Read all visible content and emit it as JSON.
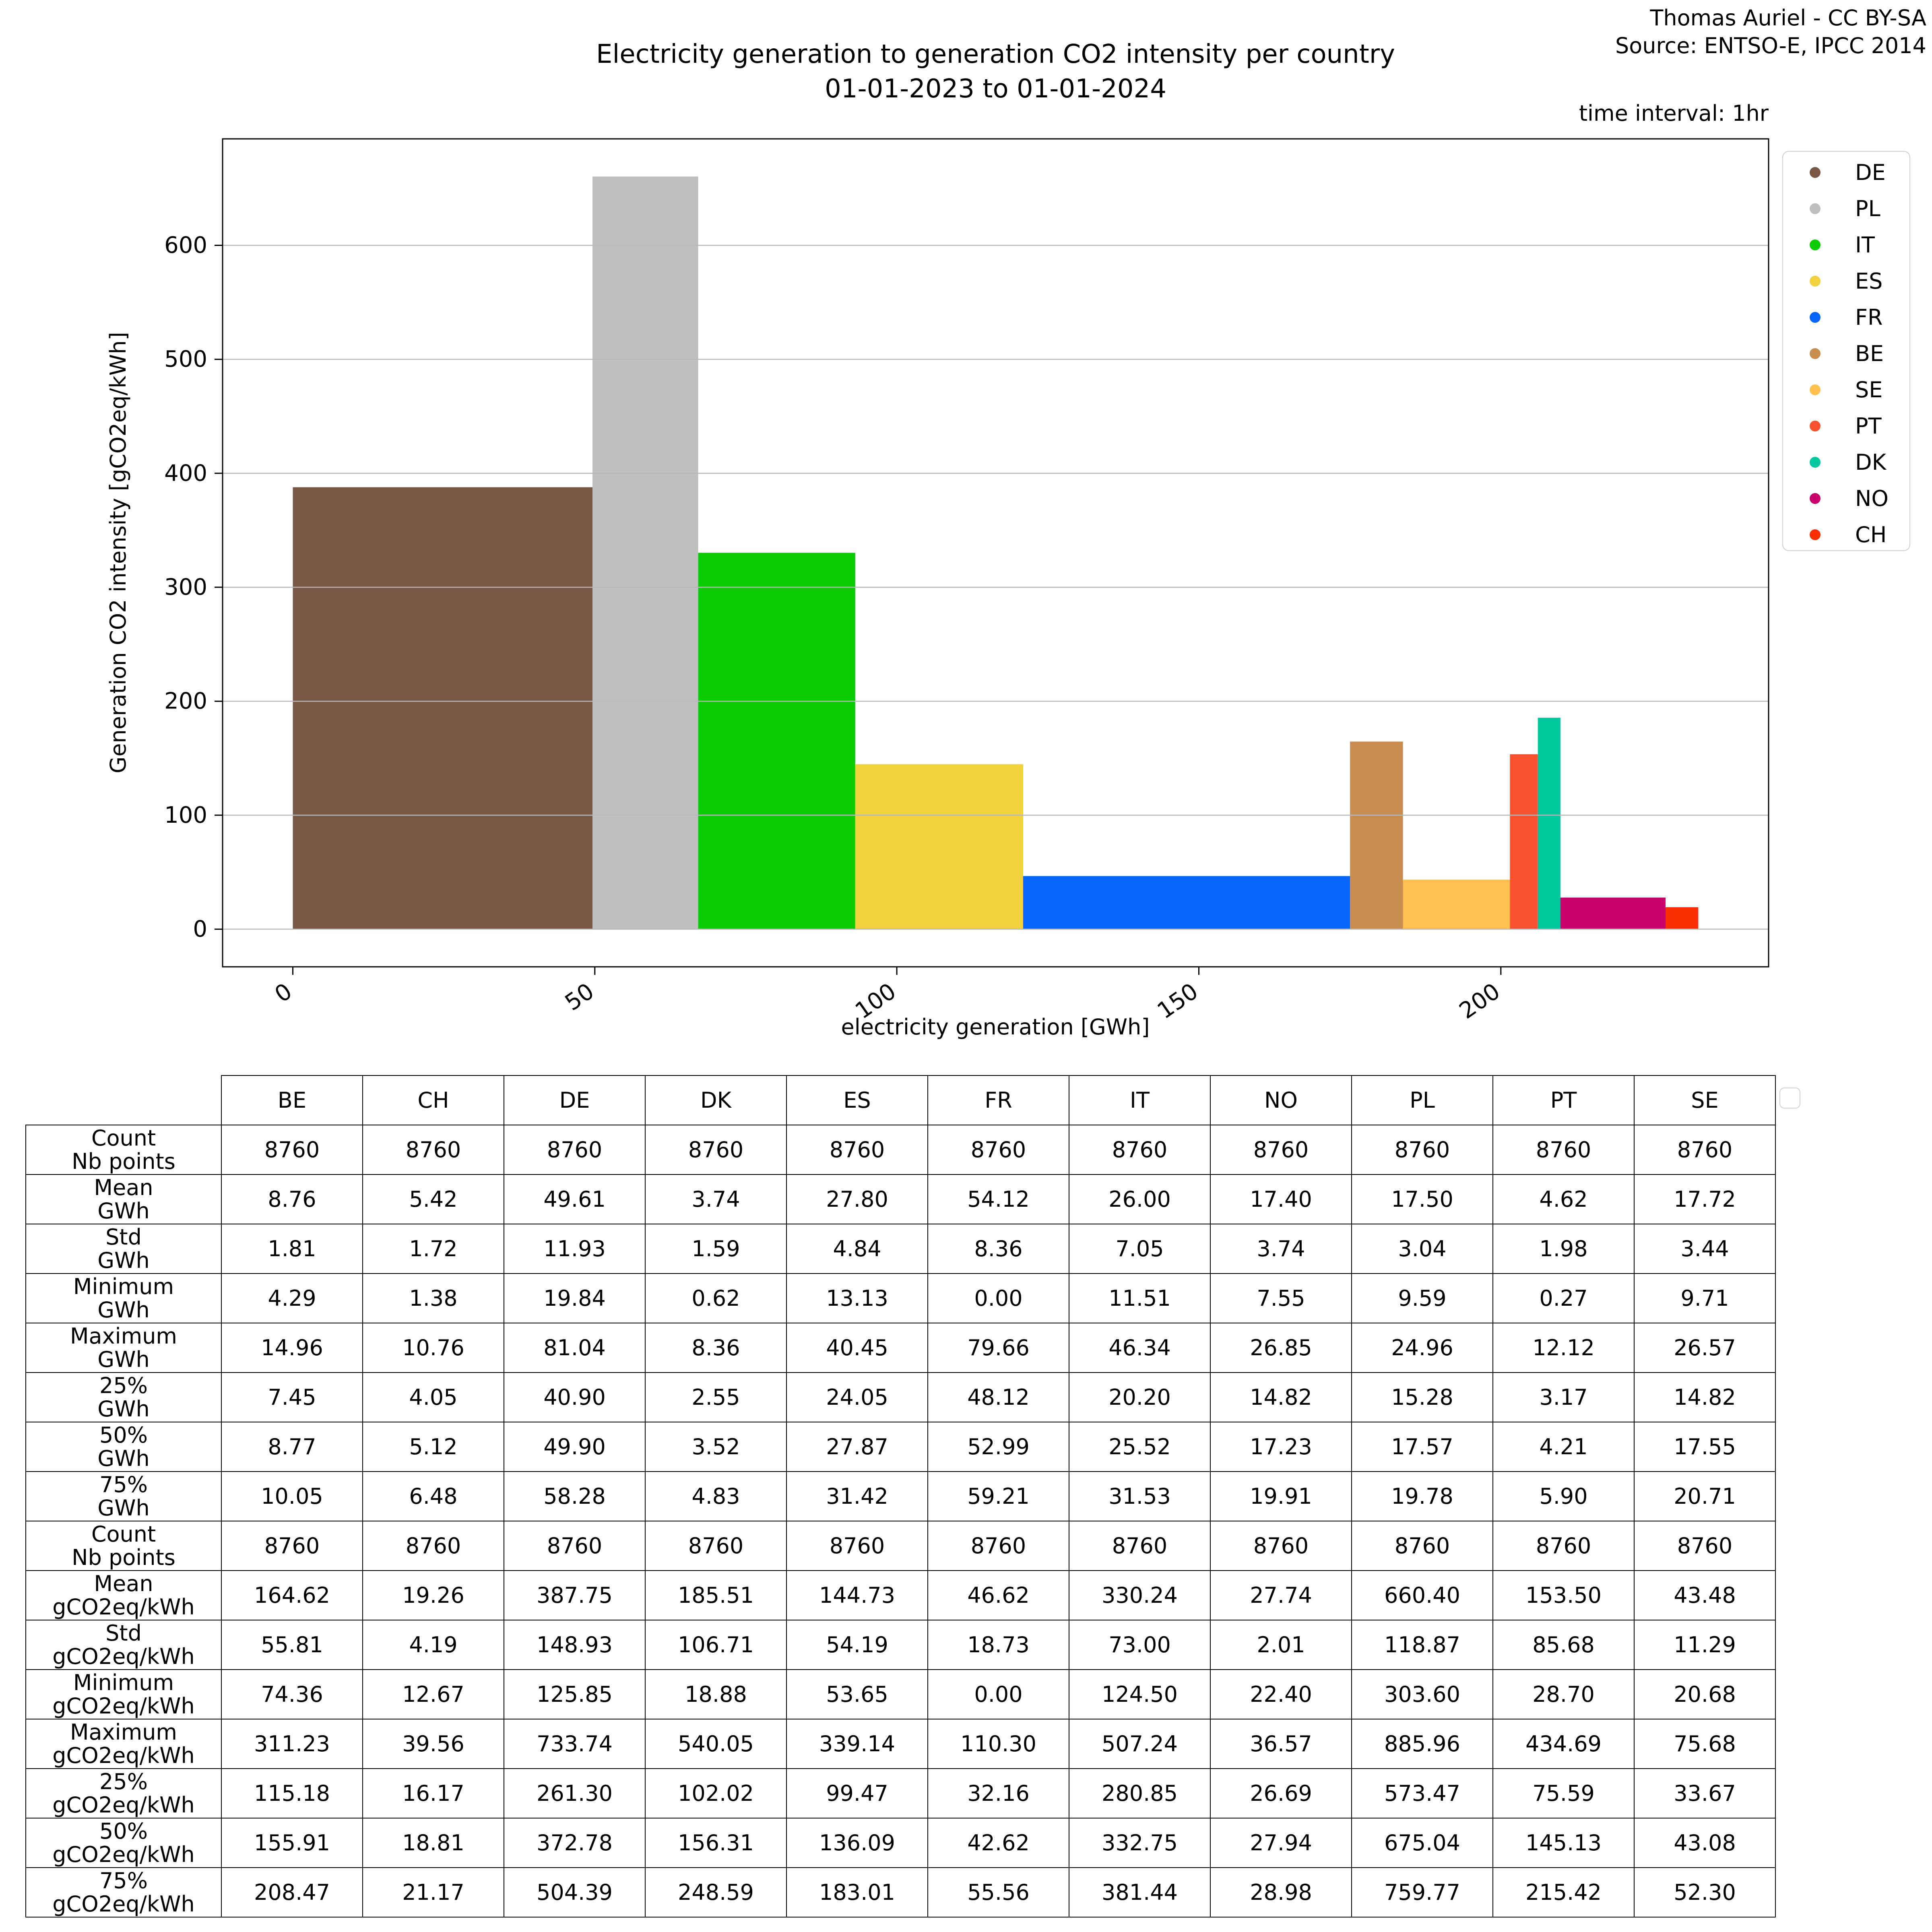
{
  "credit": {
    "line1": "Thomas Auriel - CC BY-SA",
    "line2": "Source: ENTSO-E, IPCC 2014"
  },
  "title": {
    "line1": "Electricity generation to generation CO2 intensity per country",
    "line2": "01-01-2023 to 01-01-2024"
  },
  "time_interval_note": "time interval: 1hr",
  "chart_data": {
    "type": "bar",
    "title": "Electricity generation to generation CO2 intensity per country 01-01-2023 to 01-01-2024",
    "xlabel": "electricity generation [GWh]",
    "ylabel": "Generation CO2 intensity [gCO2eq/kWh]",
    "bar_mode": "sequential variable-width bars: width = mean electricity generation [GWh], height = mean generation CO2 intensity [gCO2eq/kWh]",
    "x_ticks": [
      0,
      50,
      100,
      150,
      200
    ],
    "y_ticks": [
      0,
      100,
      200,
      300,
      400,
      500,
      600
    ],
    "xlim": [
      -11.63,
      244.33
    ],
    "ylim": [
      -33.02,
      693.42
    ],
    "grid": "horizontal",
    "legend_position": "right",
    "series": [
      {
        "name": "DE",
        "color": "#775746",
        "gwh_mean": 49.61,
        "co2_mean": 387.75
      },
      {
        "name": "PL",
        "color": "#bfbfbf",
        "gwh_mean": 17.5,
        "co2_mean": 660.4
      },
      {
        "name": "IT",
        "color": "#0acc00",
        "gwh_mean": 26.0,
        "co2_mean": 330.24
      },
      {
        "name": "ES",
        "color": "#f2d13e",
        "gwh_mean": 27.8,
        "co2_mean": 144.73
      },
      {
        "name": "FR",
        "color": "#0566fb",
        "gwh_mean": 54.12,
        "co2_mean": 46.62
      },
      {
        "name": "BE",
        "color": "#c88e50",
        "gwh_mean": 8.76,
        "co2_mean": 164.62
      },
      {
        "name": "SE",
        "color": "#ffc04e",
        "gwh_mean": 17.72,
        "co2_mean": 43.48
      },
      {
        "name": "PT",
        "color": "#f95231",
        "gwh_mean": 4.62,
        "co2_mean": 153.5
      },
      {
        "name": "DK",
        "color": "#00c89e",
        "gwh_mean": 3.74,
        "co2_mean": 185.51
      },
      {
        "name": "NO",
        "color": "#c9016a",
        "gwh_mean": 17.4,
        "co2_mean": 27.74
      },
      {
        "name": "CH",
        "color": "#fb2f00",
        "gwh_mean": 5.42,
        "co2_mean": 19.26
      }
    ]
  },
  "table": {
    "columns": [
      "BE",
      "CH",
      "DE",
      "DK",
      "ES",
      "FR",
      "IT",
      "NO",
      "PL",
      "PT",
      "SE"
    ],
    "rows": [
      {
        "label": [
          "Count",
          "Nb points"
        ],
        "values": [
          "8760",
          "8760",
          "8760",
          "8760",
          "8760",
          "8760",
          "8760",
          "8760",
          "8760",
          "8760",
          "8760"
        ]
      },
      {
        "label": [
          "Mean",
          "GWh"
        ],
        "values": [
          "8.76",
          "5.42",
          "49.61",
          "3.74",
          "27.80",
          "54.12",
          "26.00",
          "17.40",
          "17.50",
          "4.62",
          "17.72"
        ]
      },
      {
        "label": [
          "Std",
          "GWh"
        ],
        "values": [
          "1.81",
          "1.72",
          "11.93",
          "1.59",
          "4.84",
          "8.36",
          "7.05",
          "3.74",
          "3.04",
          "1.98",
          "3.44"
        ]
      },
      {
        "label": [
          "Minimum",
          "GWh"
        ],
        "values": [
          "4.29",
          "1.38",
          "19.84",
          "0.62",
          "13.13",
          "0.00",
          "11.51",
          "7.55",
          "9.59",
          "0.27",
          "9.71"
        ]
      },
      {
        "label": [
          "Maximum",
          "GWh"
        ],
        "values": [
          "14.96",
          "10.76",
          "81.04",
          "8.36",
          "40.45",
          "79.66",
          "46.34",
          "26.85",
          "24.96",
          "12.12",
          "26.57"
        ]
      },
      {
        "label": [
          "25%",
          "GWh"
        ],
        "values": [
          "7.45",
          "4.05",
          "40.90",
          "2.55",
          "24.05",
          "48.12",
          "20.20",
          "14.82",
          "15.28",
          "3.17",
          "14.82"
        ]
      },
      {
        "label": [
          "50%",
          "GWh"
        ],
        "values": [
          "8.77",
          "5.12",
          "49.90",
          "3.52",
          "27.87",
          "52.99",
          "25.52",
          "17.23",
          "17.57",
          "4.21",
          "17.55"
        ]
      },
      {
        "label": [
          "75%",
          "GWh"
        ],
        "values": [
          "10.05",
          "6.48",
          "58.28",
          "4.83",
          "31.42",
          "59.21",
          "31.53",
          "19.91",
          "19.78",
          "5.90",
          "20.71"
        ]
      },
      {
        "label": [
          "Count",
          "Nb points"
        ],
        "values": [
          "8760",
          "8760",
          "8760",
          "8760",
          "8760",
          "8760",
          "8760",
          "8760",
          "8760",
          "8760",
          "8760"
        ]
      },
      {
        "label": [
          "Mean",
          "gCO2eq/kWh"
        ],
        "values": [
          "164.62",
          "19.26",
          "387.75",
          "185.51",
          "144.73",
          "46.62",
          "330.24",
          "27.74",
          "660.40",
          "153.50",
          "43.48"
        ]
      },
      {
        "label": [
          "Std",
          "gCO2eq/kWh"
        ],
        "values": [
          "55.81",
          "4.19",
          "148.93",
          "106.71",
          "54.19",
          "18.73",
          "73.00",
          "2.01",
          "118.87",
          "85.68",
          "11.29"
        ]
      },
      {
        "label": [
          "Minimum",
          "gCO2eq/kWh"
        ],
        "values": [
          "74.36",
          "12.67",
          "125.85",
          "18.88",
          "53.65",
          "0.00",
          "124.50",
          "22.40",
          "303.60",
          "28.70",
          "20.68"
        ]
      },
      {
        "label": [
          "Maximum",
          "gCO2eq/kWh"
        ],
        "values": [
          "311.23",
          "39.56",
          "733.74",
          "540.05",
          "339.14",
          "110.30",
          "507.24",
          "36.57",
          "885.96",
          "434.69",
          "75.68"
        ]
      },
      {
        "label": [
          "25%",
          "gCO2eq/kWh"
        ],
        "values": [
          "115.18",
          "16.17",
          "261.30",
          "102.02",
          "99.47",
          "32.16",
          "280.85",
          "26.69",
          "573.47",
          "75.59",
          "33.67"
        ]
      },
      {
        "label": [
          "50%",
          "gCO2eq/kWh"
        ],
        "values": [
          "155.91",
          "18.81",
          "372.78",
          "156.31",
          "136.09",
          "42.62",
          "332.75",
          "27.94",
          "675.04",
          "145.13",
          "43.08"
        ]
      },
      {
        "label": [
          "75%",
          "gCO2eq/kWh"
        ],
        "values": [
          "208.47",
          "21.17",
          "504.39",
          "248.59",
          "183.01",
          "55.56",
          "381.44",
          "28.98",
          "759.77",
          "215.42",
          "52.30"
        ]
      }
    ]
  }
}
